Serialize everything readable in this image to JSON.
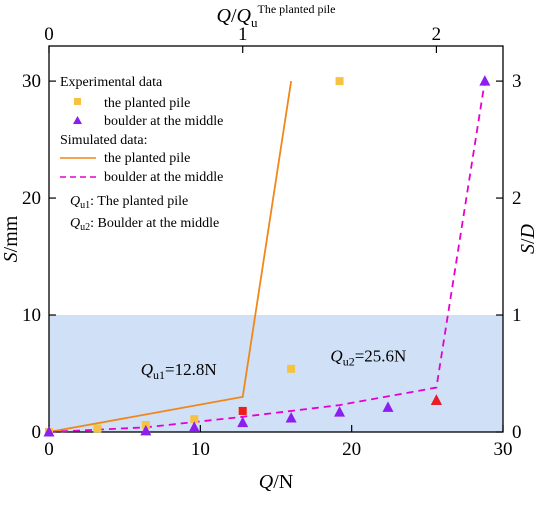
{
  "chart_data": {
    "type": "scatter",
    "xlabel": "Q/N",
    "ylabel": "S/mm",
    "xlim": [
      0,
      30
    ],
    "ylim": [
      0,
      33
    ],
    "x_ticks": [
      "0",
      "10",
      "20",
      "30"
    ],
    "y_ticks": [
      "0",
      "10",
      "20",
      "30"
    ],
    "top_axis": {
      "label": "Q/Q_u^The planted pile",
      "ticks": [
        "0",
        "1",
        "2"
      ],
      "tick_values": [
        0,
        1,
        2
      ],
      "unit_value": 12.8
    },
    "right_axis": {
      "label": "S/D",
      "ticks": [
        "0",
        "1",
        "2",
        "3"
      ],
      "tick_values": [
        0,
        1,
        2,
        3
      ],
      "unit_value": 10
    },
    "shaded_band": {
      "y_from": 0,
      "y_to": 10,
      "color": "#cfe0f7"
    },
    "grid": false,
    "legend": {
      "position": "top-left",
      "experimental_heading": "Experimental data",
      "simulated_heading": "Simulated data:",
      "exp_planted": "the planted pile",
      "exp_boulder": "boulder at the middle",
      "sim_planted": "the planted pile",
      "sim_boulder": "boulder at the middle",
      "qu1_sym": "Q",
      "qu1_sub": "u1",
      "qu1_desc": ": The planted pile",
      "qu2_sym": "Q",
      "qu2_sub": "u2",
      "qu2_desc": ": Boulder at the middle"
    },
    "series": [
      {
        "name": "the planted pile",
        "kind": "experimental",
        "marker": "square",
        "color": "#f5c242",
        "x": [
          0,
          3.2,
          6.4,
          9.6,
          12.8,
          16.0,
          19.2
        ],
        "y": [
          0,
          0.3,
          0.6,
          1.1,
          1.8,
          5.4,
          30.0
        ]
      },
      {
        "name": "boulder at the middle",
        "kind": "experimental",
        "marker": "triangle",
        "color": "#8c1ef0",
        "x": [
          0,
          6.4,
          9.6,
          12.8,
          16.0,
          19.2,
          22.4,
          25.6,
          28.8
        ],
        "y": [
          0,
          0.1,
          0.4,
          0.8,
          1.2,
          1.7,
          2.1,
          2.7,
          30.0
        ]
      },
      {
        "name": "the planted pile",
        "kind": "simulated",
        "line": "solid",
        "color": "#f0871a",
        "x": [
          0,
          12.8,
          16.0
        ],
        "y": [
          0,
          3.0,
          30.0
        ]
      },
      {
        "name": "boulder at the middle",
        "kind": "simulated",
        "line": "dashed",
        "color": "#e600d0",
        "x": [
          0,
          6.4,
          12.8,
          19.2,
          25.6,
          28.8
        ],
        "y": [
          0,
          0.4,
          1.3,
          2.3,
          3.8,
          30.0
        ]
      }
    ],
    "highlights": [
      {
        "x": 12.8,
        "y": 1.8,
        "marker": "square",
        "color": "#ee1c1c"
      },
      {
        "x": 25.6,
        "y": 2.7,
        "marker": "triangle",
        "color": "#ee1c1c"
      }
    ],
    "annotations": [
      {
        "x": 12.8,
        "y": 3.0,
        "sym": "Q",
        "sub": "u1",
        "value": "=12.8N"
      },
      {
        "x": 25.6,
        "y": 3.8,
        "sym": "Q",
        "sub": "u2",
        "value": "=25.6N"
      }
    ]
  }
}
